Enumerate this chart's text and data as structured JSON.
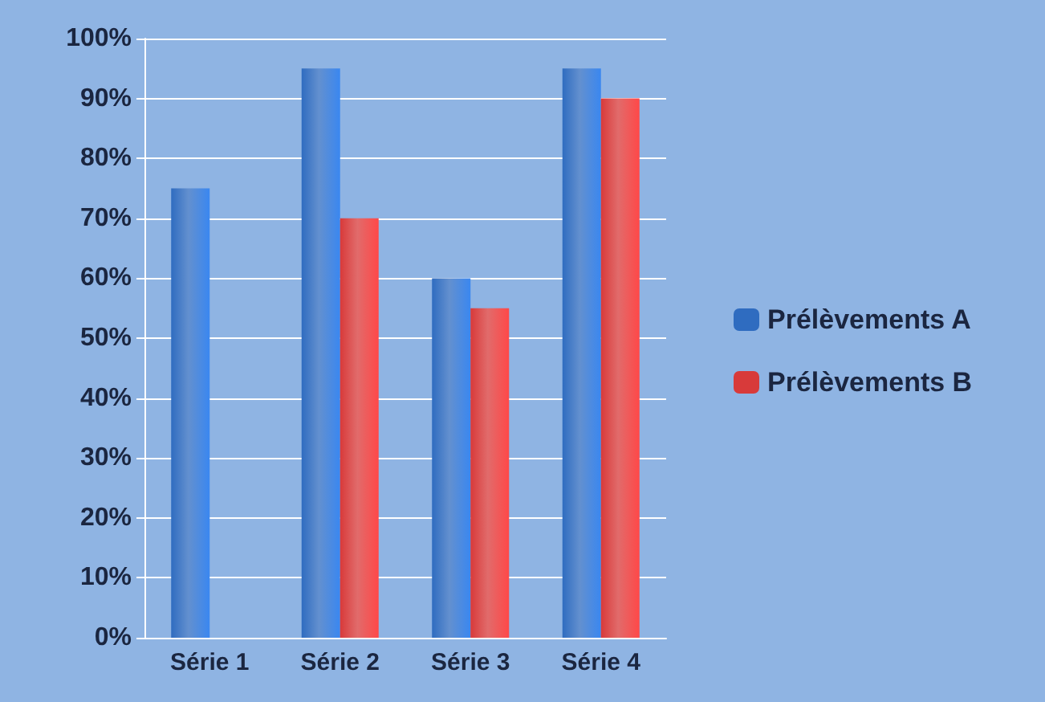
{
  "chart_data": {
    "type": "bar",
    "categories": [
      "Série 1",
      "Série 2",
      "Série 3",
      "Série 4"
    ],
    "series": [
      {
        "name": "Prélèvements A",
        "color": "#2f6cc0",
        "values": [
          75,
          95,
          60,
          95
        ]
      },
      {
        "name": "Prélèvements B",
        "color": "#d83a3a",
        "values": [
          null,
          70,
          55,
          90
        ]
      }
    ],
    "ylim": [
      0,
      100
    ],
    "yticks": [
      {
        "value": 0,
        "label": "0%"
      },
      {
        "value": 10,
        "label": "10%"
      },
      {
        "value": 20,
        "label": "20%"
      },
      {
        "value": 30,
        "label": "30%"
      },
      {
        "value": 40,
        "label": "40%"
      },
      {
        "value": 50,
        "label": "50%"
      },
      {
        "value": 60,
        "label": "60%"
      },
      {
        "value": 70,
        "label": "70%"
      },
      {
        "value": 80,
        "label": "80%"
      },
      {
        "value": 90,
        "label": "90%"
      },
      {
        "value": 100,
        "label": "100%"
      }
    ],
    "grid": "y",
    "legend": "right"
  }
}
